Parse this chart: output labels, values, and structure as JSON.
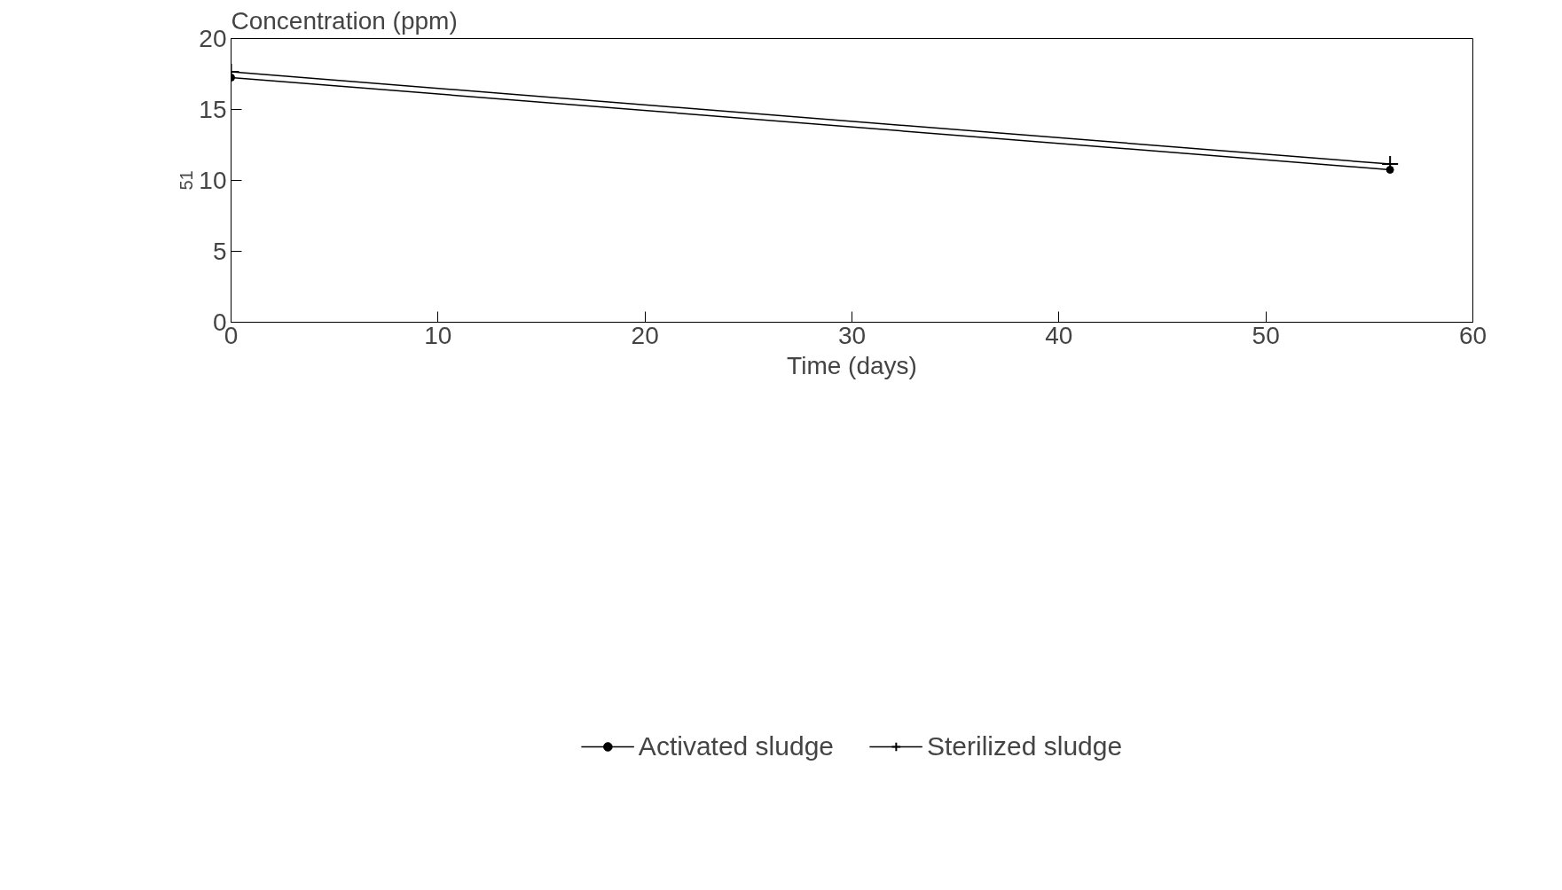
{
  "chart_data": {
    "type": "line",
    "xlabel": "Time (days)",
    "ylabel": "Concentration (ppm)",
    "x": [
      0,
      56
    ],
    "series": [
      {
        "name": "Activated sludge",
        "color": "#000000",
        "values": [
          17.25,
          10.75
        ],
        "marker": "circle"
      },
      {
        "name": "Sterilized sludge",
        "color": "#000000",
        "values": [
          17.65,
          11.15
        ],
        "marker": "cross"
      }
    ],
    "xlim": [
      0,
      60
    ],
    "xticks": [
      0,
      10,
      20,
      30,
      40,
      50,
      60
    ],
    "ylim": [
      0,
      20
    ],
    "yticks": [
      0,
      5,
      10,
      15,
      20
    ],
    "grid": false,
    "legend": "bottom",
    "line_style": "solid",
    "annotations": [
      "51"
    ]
  }
}
